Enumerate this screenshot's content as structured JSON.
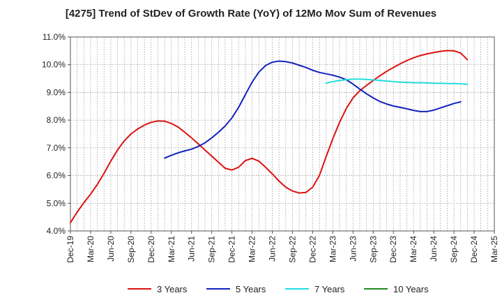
{
  "chart_data": {
    "type": "line",
    "title": "[4275]  Trend of StDev of Growth Rate (YoY) of 12Mo Mov Sum of Revenues",
    "xlabel": "",
    "ylabel": "",
    "ylim": [
      4.0,
      11.0
    ],
    "y_ticks": [
      "4.0%",
      "5.0%",
      "6.0%",
      "7.0%",
      "8.0%",
      "9.0%",
      "10.0%",
      "11.0%"
    ],
    "x_ticks": [
      "Dec-19",
      "Mar-20",
      "Jun-20",
      "Sep-20",
      "Dec-20",
      "Mar-21",
      "Jun-21",
      "Sep-21",
      "Dec-21",
      "Mar-22",
      "Jun-22",
      "Sep-22",
      "Dec-22",
      "Mar-23",
      "Jun-23",
      "Sep-23",
      "Dec-23",
      "Mar-24",
      "Jun-24",
      "Sep-24",
      "Dec-24",
      "Mar-25"
    ],
    "grid": true,
    "legend_position": "bottom",
    "series": [
      {
        "name": "3 Years",
        "color": "#dd1111",
        "start_index": 0,
        "values": [
          4.3,
          4.68,
          5.02,
          5.33,
          5.68,
          6.08,
          6.52,
          6.92,
          7.25,
          7.5,
          7.68,
          7.82,
          7.92,
          7.97,
          7.96,
          7.88,
          7.75,
          7.56,
          7.36,
          7.14,
          6.92,
          6.7,
          6.48,
          6.26,
          6.2,
          6.3,
          6.54,
          6.62,
          6.52,
          6.3,
          6.06,
          5.8,
          5.58,
          5.44,
          5.37,
          5.39,
          5.58,
          6.0,
          6.68,
          7.33,
          7.92,
          8.42,
          8.8,
          9.06,
          9.25,
          9.43,
          9.6,
          9.76,
          9.9,
          10.03,
          10.15,
          10.25,
          10.33,
          10.39,
          10.44,
          10.48,
          10.51,
          10.5,
          10.42,
          10.18
        ]
      },
      {
        "name": "5 Years",
        "color": "#1122bb",
        "start_index": 14,
        "values": [
          6.63,
          6.73,
          6.82,
          6.89,
          6.95,
          7.05,
          7.18,
          7.36,
          7.56,
          7.79,
          8.08,
          8.46,
          8.92,
          9.37,
          9.73,
          9.97,
          10.09,
          10.13,
          10.11,
          10.06,
          9.98,
          9.9,
          9.8,
          9.72,
          9.67,
          9.62,
          9.55,
          9.46,
          9.3,
          9.12,
          8.95,
          8.8,
          8.67,
          8.58,
          8.51,
          8.46,
          8.41,
          8.35,
          8.31,
          8.31,
          8.36,
          8.44,
          8.52,
          8.6,
          8.66
        ]
      },
      {
        "name": "7 Years",
        "color": "#22dddd",
        "start_index": 38,
        "values": [
          9.33,
          9.39,
          9.43,
          9.46,
          9.48,
          9.48,
          9.47,
          9.45,
          9.43,
          9.41,
          9.39,
          9.37,
          9.36,
          9.35,
          9.35,
          9.34,
          9.33,
          9.33,
          9.32,
          9.32,
          9.31,
          9.29
        ]
      },
      {
        "name": "10 Years",
        "color": "#228822",
        "start_index": 0,
        "values": []
      }
    ]
  }
}
